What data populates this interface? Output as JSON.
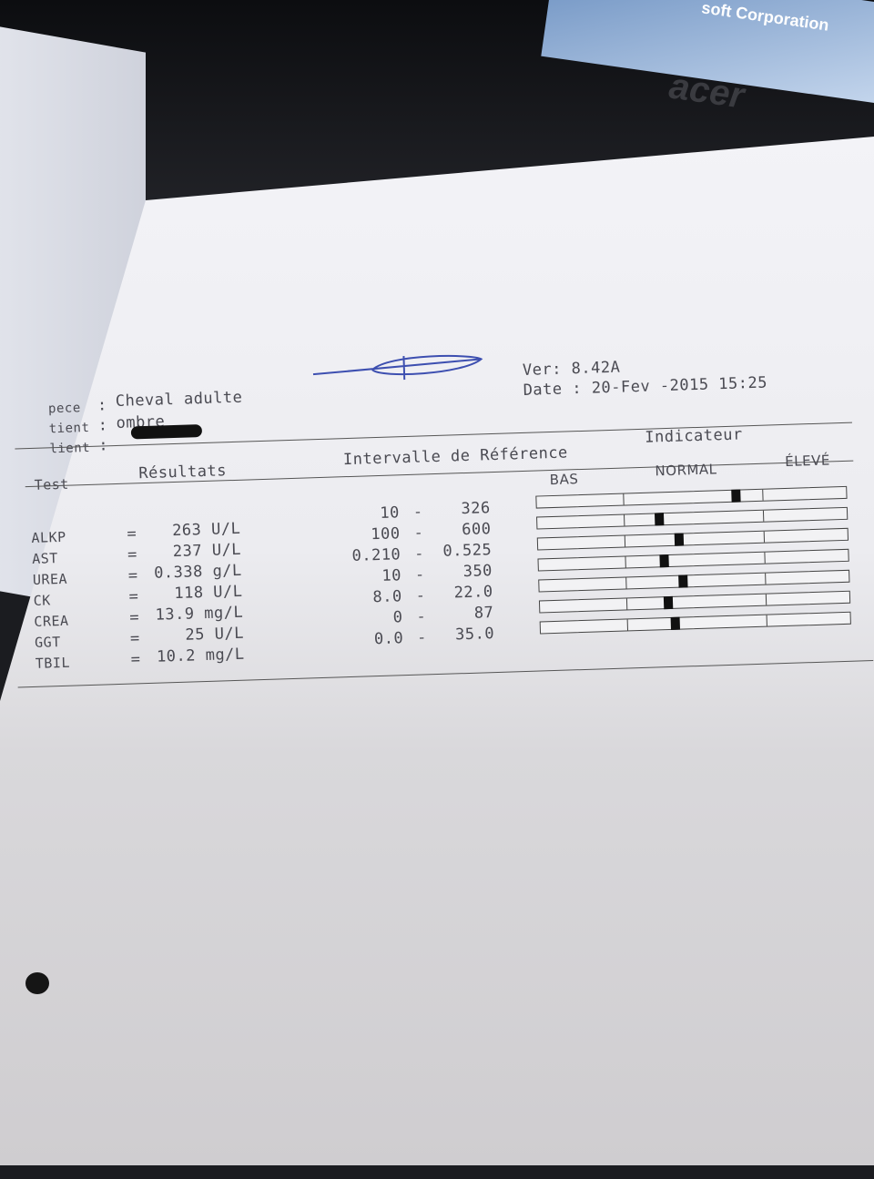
{
  "background": {
    "screen_text": "soft Corporation",
    "laptop_brand": "acer",
    "power_led_color": "#2a8cff"
  },
  "header": {
    "species_label": "pece",
    "species_value": "Cheval adulte",
    "patient_label": "tient",
    "patient_value": "ombre",
    "client_label": "lient",
    "client_value_redacted": true,
    "separator": ":",
    "version": "Ver: 8.42A",
    "date": "Date : 20-Fev -2015 15:25"
  },
  "table": {
    "columns": [
      "Test",
      "Résultats",
      "Intervalle de Référence",
      "Indicateur"
    ],
    "indicator_labels": [
      "BAS",
      "NORMAL",
      "ÉLEVÉ"
    ],
    "rows": [
      {
        "test": "ALKP",
        "eq": "=",
        "result": "263 U/L",
        "ref_low": "10",
        "ref_high": "326",
        "marker_fraction": 0.63
      },
      {
        "test": "AST",
        "eq": "=",
        "result": "237 U/L",
        "ref_low": "100",
        "ref_high": "600",
        "marker_fraction": 0.38
      },
      {
        "test": "UREA",
        "eq": "=",
        "result": "0.338 g/L",
        "ref_low": "0.210",
        "ref_high": "0.525",
        "marker_fraction": 0.44
      },
      {
        "test": "CK",
        "eq": "=",
        "result": "118 U/L",
        "ref_low": "10",
        "ref_high": "350",
        "marker_fraction": 0.39
      },
      {
        "test": "CREA",
        "eq": "=",
        "result": "13.9 mg/L",
        "ref_low": "8.0",
        "ref_high": "22.0",
        "marker_fraction": 0.45
      },
      {
        "test": "GGT",
        "eq": "=",
        "result": "25 U/L",
        "ref_low": "0",
        "ref_high": "87",
        "marker_fraction": 0.4
      },
      {
        "test": "TBIL",
        "eq": "=",
        "result": "10.2 mg/L",
        "ref_low": "0.0",
        "ref_high": "35.0",
        "marker_fraction": 0.42
      }
    ]
  }
}
